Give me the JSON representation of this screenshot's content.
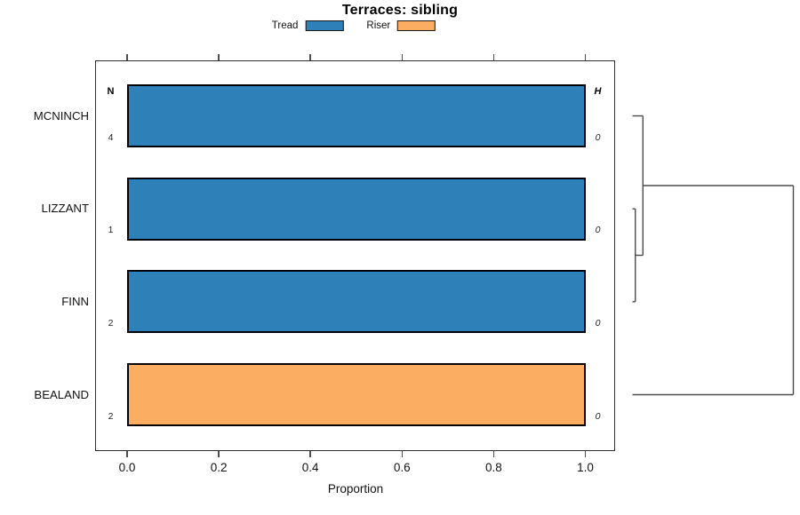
{
  "chart_data": {
    "type": "bar",
    "orientation": "horizontal",
    "title": "Terraces: sibling",
    "xlabel": "Proportion",
    "xlim": [
      0,
      1
    ],
    "xticks": [
      0,
      0.2,
      0.4,
      0.6,
      0.8,
      1.0
    ],
    "xtick_labels": [
      "0.0",
      "0.2",
      "0.4",
      "0.6",
      "0.8",
      "1.0"
    ],
    "categories": [
      "MCNINCH",
      "LIZZANT",
      "FINN",
      "BEALAND"
    ],
    "series": [
      {
        "name": "Tread",
        "color": "#2E81B8",
        "values": [
          1.0,
          1.0,
          1.0,
          0.0
        ]
      },
      {
        "name": "Riser",
        "color": "#FBAD62",
        "values": [
          0.0,
          0.0,
          0.0,
          1.0
        ]
      }
    ],
    "legend_position": "top",
    "grid": false,
    "annotations": {
      "n_header": "N",
      "n_values": [
        "4",
        "1",
        "2",
        "2"
      ],
      "h_header": "H",
      "h_values": [
        "0",
        "0",
        "0",
        "0"
      ]
    },
    "dendrogram": {
      "side": "right",
      "merges": [
        {
          "children": [
            "LIZZANT",
            "FINN"
          ],
          "height": 0.018
        },
        {
          "children": [
            "merge0",
            "MCNINCH"
          ],
          "height": 0.065
        },
        {
          "children": [
            "merge1",
            "BEALAND"
          ],
          "height": 1.0
        }
      ]
    }
  }
}
